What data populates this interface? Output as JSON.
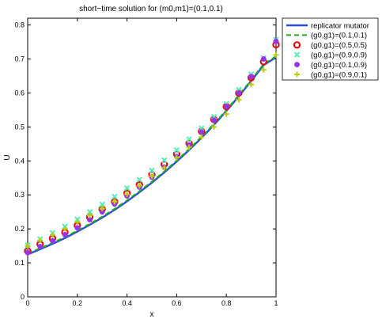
{
  "chart_data": {
    "type": "line",
    "title": "short−time solution for (m0,m1)=(0.1,0.1)",
    "xlabel": "x",
    "ylabel": "U",
    "xlim": [
      0,
      1
    ],
    "ylim": [
      0,
      0.82
    ],
    "xticks": [
      0,
      0.2,
      0.4,
      0.6,
      0.8,
      1
    ],
    "xtick_labels": [
      "0",
      "0.2",
      "0.4",
      "0.6",
      "0.8",
      "1"
    ],
    "yticks": [
      0,
      0.1,
      0.2,
      0.3,
      0.4,
      0.5,
      0.6,
      0.7,
      0.8
    ],
    "ytick_labels": [
      "0",
      "0.1",
      "0.2",
      "0.3",
      "0.4",
      "0.5",
      "0.6",
      "0.7",
      "0.8"
    ],
    "grid": false,
    "legend_position": "outside-top-right",
    "x": [
      0,
      0.05,
      0.1,
      0.15,
      0.2,
      0.25,
      0.3,
      0.35,
      0.4,
      0.45,
      0.5,
      0.55,
      0.6,
      0.65,
      0.7,
      0.75,
      0.8,
      0.85,
      0.9,
      0.95,
      1.0
    ],
    "series": [
      {
        "name": "replicator mutator",
        "style": "line",
        "color": "#2b4fd8",
        "values": [
          0.125,
          0.14,
          0.156,
          0.173,
          0.192,
          0.212,
          0.233,
          0.256,
          0.281,
          0.308,
          0.336,
          0.366,
          0.398,
          0.432,
          0.468,
          0.506,
          0.547,
          0.59,
          0.635,
          0.682,
          0.705
        ]
      },
      {
        "name": "(g0,g1)=(0.1,0.1)",
        "style": "dashed",
        "color": "#22aa22",
        "values": [
          0.128,
          0.143,
          0.159,
          0.176,
          0.195,
          0.215,
          0.236,
          0.259,
          0.284,
          0.311,
          0.339,
          0.369,
          0.401,
          0.435,
          0.471,
          0.509,
          0.55,
          0.593,
          0.638,
          0.685,
          0.708
        ]
      },
      {
        "name": "(g0,g1)=(0.5,0.5)",
        "style": "marker-circle",
        "color": "#dd1111",
        "values": [
          0.135,
          0.155,
          0.172,
          0.19,
          0.21,
          0.235,
          0.258,
          0.28,
          0.305,
          0.33,
          0.36,
          0.39,
          0.42,
          0.452,
          0.487,
          0.522,
          0.56,
          0.6,
          0.645,
          0.692,
          0.742
        ]
      },
      {
        "name": "(g0,g1)=(0.9,0.9)",
        "style": "marker-x",
        "color": "#55eebb",
        "values": [
          0.152,
          0.17,
          0.188,
          0.207,
          0.228,
          0.25,
          0.272,
          0.295,
          0.32,
          0.345,
          0.372,
          0.402,
          0.432,
          0.464,
          0.496,
          0.53,
          0.568,
          0.61,
          0.655,
          0.703,
          0.757
        ]
      },
      {
        "name": "(g0,g1)=(0.1,0.9)",
        "style": "marker-dot",
        "color": "#9933ee",
        "values": [
          0.13,
          0.148,
          0.165,
          0.183,
          0.203,
          0.227,
          0.25,
          0.273,
          0.297,
          0.323,
          0.352,
          0.382,
          0.413,
          0.447,
          0.485,
          0.52,
          0.56,
          0.6,
          0.648,
          0.7,
          0.752
        ]
      },
      {
        "name": "(g0,g1)=(0.9,0.1)",
        "style": "marker-plus",
        "color": "#bbcc11",
        "values": [
          0.15,
          0.166,
          0.182,
          0.2,
          0.22,
          0.24,
          0.26,
          0.28,
          0.302,
          0.327,
          0.355,
          0.38,
          0.41,
          0.44,
          0.47,
          0.5,
          0.538,
          0.58,
          0.625,
          0.668,
          0.712
        ]
      }
    ]
  }
}
